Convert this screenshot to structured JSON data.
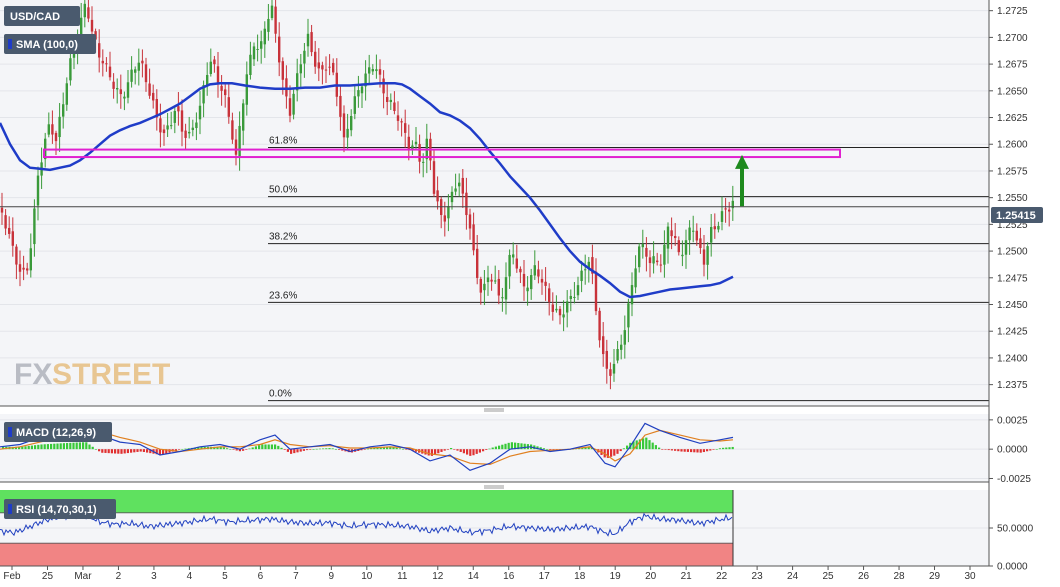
{
  "symbol": "USD/CAD",
  "indicators": {
    "sma": "SMA (100,0)",
    "macd": "MACD (12,26,9)",
    "rsi": "RSI (14,70,30,1)"
  },
  "watermark": {
    "part1": "FX",
    "part2": "STREET"
  },
  "colors": {
    "up": "#3a9a3a",
    "down": "#c8323a",
    "sma": "#1f3cc8",
    "fib_zone": "#e020d0",
    "arrow": "#1e8a1e",
    "macd": "#2040c0",
    "signal": "#e08020",
    "rsi_line": "#2040c0",
    "rsi_overbought": "#44dd44",
    "rsi_oversold": "#f07070",
    "label_bg": "#4a5a6e"
  },
  "chart_data": [
    {
      "type": "candlestick",
      "title": "USD/CAD",
      "ylim": [
        1.2355,
        1.2735
      ],
      "y_ticks": [
        "1.2725",
        "1.2700",
        "1.2675",
        "1.2650",
        "1.2625",
        "1.2600",
        "1.2575",
        "1.2550",
        "1.2525",
        "1.2500",
        "1.2475",
        "1.2450",
        "1.2425",
        "1.2400",
        "1.2375"
      ],
      "x_labels": [
        "Feb",
        "25",
        "Mar",
        "2",
        "3",
        "4",
        "5",
        "6",
        "7",
        "9",
        "10",
        "11",
        "12",
        "14",
        "16",
        "17",
        "18",
        "19",
        "20",
        "21",
        "22",
        "23",
        "24",
        "25",
        "26",
        "28",
        "29",
        "30"
      ],
      "current_price": "1.25415",
      "price_path": [
        [
          0,
          1.254
        ],
        [
          8,
          1.252
        ],
        [
          14,
          1.2495
        ],
        [
          20,
          1.248
        ],
        [
          26,
          1.2472
        ],
        [
          32,
          1.251
        ],
        [
          38,
          1.2565
        ],
        [
          44,
          1.2595
        ],
        [
          50,
          1.2615
        ],
        [
          56,
          1.26
        ],
        [
          62,
          1.263
        ],
        [
          68,
          1.2665
        ],
        [
          74,
          1.269
        ],
        [
          80,
          1.2712
        ],
        [
          86,
          1.2735
        ],
        [
          92,
          1.2708
        ],
        [
          98,
          1.269
        ],
        [
          104,
          1.268
        ],
        [
          110,
          1.2668
        ],
        [
          116,
          1.2655
        ],
        [
          122,
          1.2648
        ],
        [
          128,
          1.266
        ],
        [
          134,
          1.2675
        ],
        [
          140,
          1.268
        ],
        [
          146,
          1.266
        ],
        [
          152,
          1.264
        ],
        [
          158,
          1.2618
        ],
        [
          164,
          1.2605
        ],
        [
          170,
          1.2615
        ],
        [
          176,
          1.263
        ],
        [
          182,
          1.261
        ],
        [
          188,
          1.26
        ],
        [
          194,
          1.2615
        ],
        [
          200,
          1.263
        ],
        [
          206,
          1.2665
        ],
        [
          212,
          1.2678
        ],
        [
          218,
          1.266
        ],
        [
          224,
          1.2648
        ],
        [
          230,
          1.2625
        ],
        [
          236,
          1.259
        ],
        [
          242,
          1.264
        ],
        [
          248,
          1.2675
        ],
        [
          254,
          1.27
        ],
        [
          260,
          1.269
        ],
        [
          266,
          1.272
        ],
        [
          272,
          1.2728
        ],
        [
          278,
          1.269
        ],
        [
          284,
          1.265
        ],
        [
          290,
          1.263
        ],
        [
          296,
          1.2655
        ],
        [
          302,
          1.268
        ],
        [
          308,
          1.2695
        ],
        [
          314,
          1.2675
        ],
        [
          320,
          1.266
        ],
        [
          326,
          1.267
        ],
        [
          332,
          1.2665
        ],
        [
          338,
          1.264
        ],
        [
          344,
          1.26
        ],
        [
          350,
          1.2625
        ],
        [
          356,
          1.2645
        ],
        [
          362,
          1.266
        ],
        [
          368,
          1.267
        ],
        [
          374,
          1.268
        ],
        [
          380,
          1.2665
        ],
        [
          386,
          1.2648
        ],
        [
          392,
          1.264
        ],
        [
          398,
          1.263
        ],
        [
          404,
          1.2615
        ],
        [
          410,
          1.26
        ],
        [
          416,
          1.26
        ],
        [
          422,
          1.258
        ],
        [
          428,
          1.2605
        ],
        [
          434,
          1.2555
        ],
        [
          440,
          1.253
        ],
        [
          446,
          1.2528
        ],
        [
          452,
          1.2548
        ],
        [
          458,
          1.2565
        ],
        [
          464,
          1.254
        ],
        [
          470,
          1.252
        ],
        [
          476,
          1.2475
        ],
        [
          482,
          1.246
        ],
        [
          488,
          1.2472
        ],
        [
          494,
          1.2478
        ],
        [
          500,
          1.245
        ],
        [
          506,
          1.248
        ],
        [
          512,
          1.2505
        ],
        [
          518,
          1.2488
        ],
        [
          524,
          1.247
        ],
        [
          530,
          1.2478
        ],
        [
          536,
          1.249
        ],
        [
          542,
          1.2475
        ],
        [
          548,
          1.246
        ],
        [
          554,
          1.2445
        ],
        [
          560,
          1.244
        ],
        [
          566,
          1.2448
        ],
        [
          572,
          1.2455
        ],
        [
          578,
          1.2465
        ],
        [
          584,
          1.248
        ],
        [
          590,
          1.249
        ],
        [
          596,
          1.244
        ],
        [
          602,
          1.24
        ],
        [
          608,
          1.238
        ],
        [
          614,
          1.239
        ],
        [
          620,
          1.241
        ],
        [
          626,
          1.243
        ],
        [
          632,
          1.247
        ],
        [
          638,
          1.25
        ],
        [
          644,
          1.251
        ],
        [
          650,
          1.249
        ],
        [
          656,
          1.25
        ],
        [
          662,
          1.249
        ],
        [
          668,
          1.253
        ],
        [
          674,
          1.2515
        ],
        [
          680,
          1.25
        ],
        [
          686,
          1.251
        ],
        [
          692,
          1.253
        ],
        [
          698,
          1.2505
        ],
        [
          704,
          1.249
        ],
        [
          710,
          1.2515
        ],
        [
          716,
          1.252
        ],
        [
          722,
          1.253
        ],
        [
          728,
          1.2536
        ],
        [
          733,
          1.2541
        ]
      ],
      "sma_path": [
        [
          0,
          1.262
        ],
        [
          10,
          1.26
        ],
        [
          20,
          1.2585
        ],
        [
          30,
          1.2578
        ],
        [
          40,
          1.2577
        ],
        [
          50,
          1.2576
        ],
        [
          60,
          1.2578
        ],
        [
          70,
          1.258
        ],
        [
          80,
          1.2585
        ],
        [
          90,
          1.2592
        ],
        [
          100,
          1.26
        ],
        [
          110,
          1.2608
        ],
        [
          120,
          1.2613
        ],
        [
          130,
          1.2617
        ],
        [
          140,
          1.262
        ],
        [
          150,
          1.2624
        ],
        [
          160,
          1.2628
        ],
        [
          170,
          1.2633
        ],
        [
          180,
          1.2638
        ],
        [
          190,
          1.2645
        ],
        [
          200,
          1.2652
        ],
        [
          210,
          1.2656
        ],
        [
          220,
          1.2657
        ],
        [
          232,
          1.2657
        ],
        [
          245,
          1.2655
        ],
        [
          260,
          1.2653
        ],
        [
          275,
          1.2652
        ],
        [
          290,
          1.2652
        ],
        [
          305,
          1.2653
        ],
        [
          320,
          1.2653
        ],
        [
          335,
          1.2655
        ],
        [
          350,
          1.2655
        ],
        [
          365,
          1.2656
        ],
        [
          380,
          1.2657
        ],
        [
          395,
          1.2657
        ],
        [
          402,
          1.2656
        ],
        [
          410,
          1.2652
        ],
        [
          420,
          1.2645
        ],
        [
          430,
          1.2638
        ],
        [
          440,
          1.263
        ],
        [
          450,
          1.2627
        ],
        [
          460,
          1.2622
        ],
        [
          470,
          1.2615
        ],
        [
          480,
          1.2605
        ],
        [
          490,
          1.2593
        ],
        [
          500,
          1.2582
        ],
        [
          510,
          1.257
        ],
        [
          520,
          1.256
        ],
        [
          530,
          1.255
        ],
        [
          540,
          1.2538
        ],
        [
          550,
          1.2525
        ],
        [
          560,
          1.2512
        ],
        [
          570,
          1.25
        ],
        [
          580,
          1.249
        ],
        [
          590,
          1.2483
        ],
        [
          600,
          1.2477
        ],
        [
          610,
          1.247
        ],
        [
          620,
          1.2462
        ],
        [
          630,
          1.2457
        ],
        [
          640,
          1.2458
        ],
        [
          650,
          1.246
        ],
        [
          660,
          1.2462
        ],
        [
          670,
          1.2464
        ],
        [
          680,
          1.2465
        ],
        [
          690,
          1.2466
        ],
        [
          700,
          1.2467
        ],
        [
          710,
          1.2468
        ],
        [
          720,
          1.247
        ],
        [
          733,
          1.2476
        ]
      ],
      "fibonacci": [
        {
          "label": "61.8%",
          "value": 1.2597
        },
        {
          "label": "50.0%",
          "value": 1.2551
        },
        {
          "label": "38.2%",
          "value": 1.2507
        },
        {
          "label": "23.6%",
          "value": 1.2452
        },
        {
          "label": "0.0%",
          "value": 1.236
        }
      ],
      "resistance_zone": [
        1.2588,
        1.2595
      ],
      "arrow": {
        "x": 742,
        "from": 1.2542,
        "to": 1.259
      }
    },
    {
      "type": "line",
      "title": "MACD (12,26,9)",
      "ylim": [
        -0.0028,
        0.003
      ],
      "y_ticks": [
        "0.0025",
        "0.0000",
        "-0.0025"
      ],
      "macd": [
        [
          0,
          0.0002
        ],
        [
          20,
          0.0004
        ],
        [
          40,
          0.001
        ],
        [
          60,
          0.0015
        ],
        [
          85,
          0.0022
        ],
        [
          100,
          0.0012
        ],
        [
          120,
          0.0006
        ],
        [
          140,
          0.0004
        ],
        [
          160,
          -0.0005
        ],
        [
          180,
          -0.0002
        ],
        [
          200,
          0.0002
        ],
        [
          220,
          0.0004
        ],
        [
          240,
          0.0
        ],
        [
          260,
          0.0008
        ],
        [
          275,
          0.0012
        ],
        [
          290,
          0.0
        ],
        [
          310,
          0.0002
        ],
        [
          330,
          0.0004
        ],
        [
          350,
          -0.0002
        ],
        [
          370,
          0.0002
        ],
        [
          390,
          0.0004
        ],
        [
          410,
          0.0
        ],
        [
          430,
          -0.001
        ],
        [
          450,
          -0.0005
        ],
        [
          470,
          -0.0018
        ],
        [
          490,
          -0.0012
        ],
        [
          510,
          0.0
        ],
        [
          530,
          0.0002
        ],
        [
          550,
          -0.0002
        ],
        [
          570,
          0.0
        ],
        [
          590,
          0.0004
        ],
        [
          605,
          -0.0012
        ],
        [
          615,
          -0.0015
        ],
        [
          630,
          0.0002
        ],
        [
          645,
          0.0022
        ],
        [
          660,
          0.0016
        ],
        [
          680,
          0.001
        ],
        [
          700,
          0.0005
        ],
        [
          720,
          0.0008
        ],
        [
          733,
          0.001
        ]
      ],
      "signal": [
        [
          0,
          0.0
        ],
        [
          20,
          0.0002
        ],
        [
          40,
          0.0006
        ],
        [
          60,
          0.001
        ],
        [
          85,
          0.0016
        ],
        [
          100,
          0.0015
        ],
        [
          120,
          0.001
        ],
        [
          140,
          0.0006
        ],
        [
          160,
          0.0
        ],
        [
          180,
          -0.0002
        ],
        [
          200,
          0.0
        ],
        [
          220,
          0.0002
        ],
        [
          240,
          0.0002
        ],
        [
          260,
          0.0004
        ],
        [
          275,
          0.0008
        ],
        [
          290,
          0.0004
        ],
        [
          310,
          0.0002
        ],
        [
          330,
          0.0003
        ],
        [
          350,
          0.0001
        ],
        [
          370,
          0.0001
        ],
        [
          390,
          0.0002
        ],
        [
          410,
          0.0001
        ],
        [
          430,
          -0.0004
        ],
        [
          450,
          -0.0006
        ],
        [
          470,
          -0.0012
        ],
        [
          490,
          -0.0013
        ],
        [
          510,
          -0.0006
        ],
        [
          530,
          -0.0002
        ],
        [
          550,
          -0.0001
        ],
        [
          570,
          0.0
        ],
        [
          590,
          0.0002
        ],
        [
          605,
          -0.0004
        ],
        [
          615,
          -0.001
        ],
        [
          630,
          -0.0004
        ],
        [
          645,
          0.0012
        ],
        [
          660,
          0.0016
        ],
        [
          680,
          0.0012
        ],
        [
          700,
          0.0008
        ],
        [
          720,
          0.0007
        ],
        [
          733,
          0.0008
        ]
      ]
    },
    {
      "type": "line",
      "title": "RSI (14,70,30,1)",
      "ylim": [
        0,
        100
      ],
      "y_ticks": [
        "50.0000",
        "0.0000"
      ],
      "overbought": 70,
      "oversold": 30,
      "rsi": [
        [
          0,
          46
        ],
        [
          15,
          44
        ],
        [
          30,
          52
        ],
        [
          45,
          60
        ],
        [
          60,
          65
        ],
        [
          80,
          68
        ],
        [
          90,
          64
        ],
        [
          100,
          58
        ],
        [
          115,
          55
        ],
        [
          130,
          56
        ],
        [
          150,
          52
        ],
        [
          170,
          55
        ],
        [
          190,
          58
        ],
        [
          210,
          62
        ],
        [
          230,
          58
        ],
        [
          250,
          60
        ],
        [
          270,
          62
        ],
        [
          290,
          58
        ],
        [
          310,
          56
        ],
        [
          330,
          57
        ],
        [
          350,
          52
        ],
        [
          370,
          55
        ],
        [
          390,
          54
        ],
        [
          410,
          52
        ],
        [
          430,
          46
        ],
        [
          450,
          50
        ],
        [
          470,
          44
        ],
        [
          490,
          47
        ],
        [
          510,
          52
        ],
        [
          530,
          50
        ],
        [
          550,
          48
        ],
        [
          570,
          50
        ],
        [
          590,
          52
        ],
        [
          605,
          44
        ],
        [
          615,
          42
        ],
        [
          630,
          58
        ],
        [
          645,
          66
        ],
        [
          660,
          62
        ],
        [
          680,
          60
        ],
        [
          700,
          56
        ],
        [
          720,
          61
        ],
        [
          733,
          64
        ]
      ]
    }
  ]
}
